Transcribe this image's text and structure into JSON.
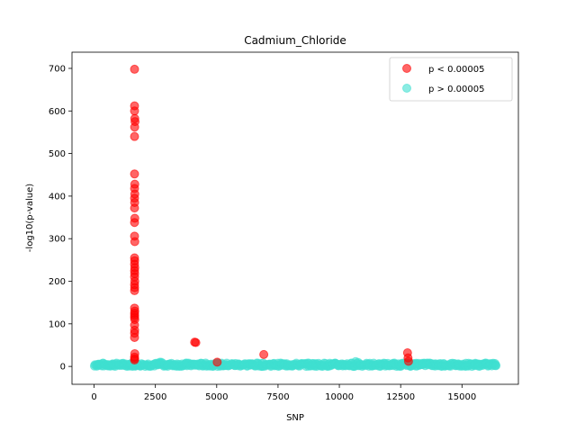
{
  "chart_data": {
    "type": "scatter",
    "title": "Cadmium_Chloride",
    "xlabel": "SNP",
    "ylabel": "-log10(p-value)",
    "xlim": [
      -900,
      17300
    ],
    "ylim": [
      -42,
      738
    ],
    "xticks": [
      0,
      2500,
      5000,
      7500,
      10000,
      12500,
      15000
    ],
    "yticks": [
      0,
      100,
      200,
      300,
      400,
      500,
      600,
      700
    ],
    "legend_position": "top-right",
    "grid": false,
    "series": [
      {
        "name": "p < 0.00005",
        "color": "#ff0000",
        "alpha": 0.6,
        "points": [
          [
            1650,
            698
          ],
          [
            1650,
            612
          ],
          [
            1650,
            600
          ],
          [
            1660,
            582
          ],
          [
            1670,
            575
          ],
          [
            1655,
            562
          ],
          [
            1650,
            540
          ],
          [
            1650,
            452
          ],
          [
            1660,
            428
          ],
          [
            1650,
            418
          ],
          [
            1660,
            405
          ],
          [
            1650,
            395
          ],
          [
            1655,
            385
          ],
          [
            1650,
            372
          ],
          [
            1660,
            348
          ],
          [
            1650,
            338
          ],
          [
            1650,
            306
          ],
          [
            1660,
            293
          ],
          [
            1650,
            255
          ],
          [
            1655,
            248
          ],
          [
            1650,
            240
          ],
          [
            1660,
            232
          ],
          [
            1650,
            225
          ],
          [
            1655,
            218
          ],
          [
            1650,
            210
          ],
          [
            1660,
            200
          ],
          [
            1650,
            192
          ],
          [
            1655,
            185
          ],
          [
            1650,
            178
          ],
          [
            1650,
            137
          ],
          [
            1660,
            130
          ],
          [
            1650,
            125
          ],
          [
            1655,
            120
          ],
          [
            1650,
            115
          ],
          [
            1660,
            110
          ],
          [
            1650,
            97
          ],
          [
            1655,
            85
          ],
          [
            1650,
            78
          ],
          [
            1650,
            68
          ],
          [
            1660,
            30
          ],
          [
            1650,
            22
          ],
          [
            1655,
            18
          ],
          [
            1650,
            15
          ],
          [
            4100,
            57
          ],
          [
            4150,
            56
          ],
          [
            5020,
            10
          ],
          [
            6920,
            28
          ],
          [
            12780,
            32
          ],
          [
            12800,
            20
          ],
          [
            12820,
            12
          ]
        ]
      },
      {
        "name": "p > 0.00005",
        "color": "#40e0d0",
        "alpha": 0.6,
        "band": {
          "x_from": 0,
          "x_to": 16400,
          "y_from": 0,
          "y_to": 8,
          "peaks": [
            [
              2750,
              10
            ],
            [
              10600,
              12
            ],
            [
              13500,
              9
            ]
          ]
        }
      }
    ]
  }
}
